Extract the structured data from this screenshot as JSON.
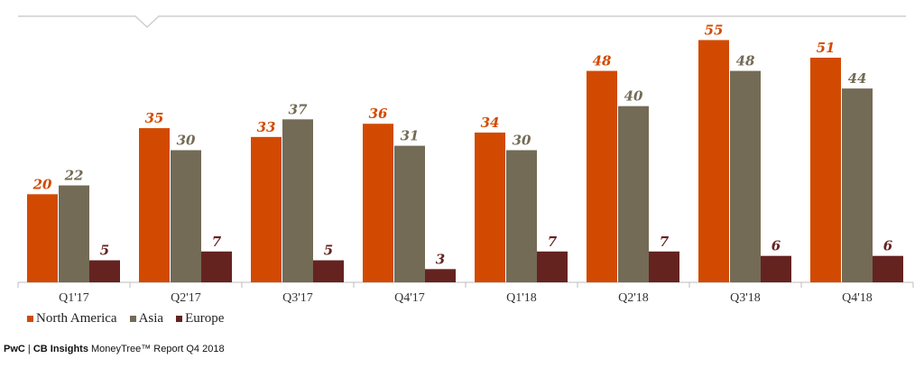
{
  "chart_data": {
    "type": "bar",
    "categories": [
      "Q1'17",
      "Q2'17",
      "Q3'17",
      "Q4'17",
      "Q1'18",
      "Q2'18",
      "Q3'18",
      "Q4'18"
    ],
    "series": [
      {
        "name": "North America",
        "color": "#d24a02",
        "values": [
          20,
          35,
          33,
          36,
          34,
          48,
          55,
          51
        ]
      },
      {
        "name": "Asia",
        "color": "#736b55",
        "values": [
          22,
          30,
          37,
          31,
          30,
          40,
          48,
          44
        ]
      },
      {
        "name": "Europe",
        "color": "#652320",
        "values": [
          5,
          7,
          5,
          3,
          7,
          7,
          6,
          6
        ]
      }
    ],
    "ylim": [
      0,
      60
    ],
    "grid": false,
    "legend_position": "bottom-left"
  },
  "source": {
    "brand": "PwC",
    "separator": "|",
    "partner": "CB Insights",
    "report": "MoneyTree™ Report Q4 2018"
  }
}
